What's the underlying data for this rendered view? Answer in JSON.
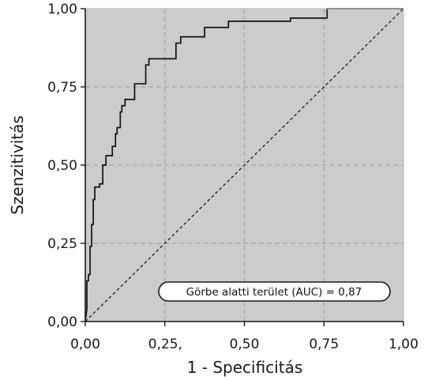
{
  "chart_data": {
    "type": "area",
    "xlabel": "1 - Specificitás",
    "ylabel": "Szenzitivitás",
    "xlim": [
      0,
      1
    ],
    "ylim": [
      0,
      1
    ],
    "grid": true,
    "x_ticks": [
      0,
      0.25,
      0.5,
      0.75,
      1
    ],
    "x_tick_labels": [
      "0,00",
      "0,25,",
      "0,50",
      "0,75",
      "1,00"
    ],
    "y_ticks": [
      0,
      0.25,
      0.5,
      0.75,
      1
    ],
    "y_tick_labels": [
      "0,00",
      "0,25",
      "0,50",
      "0,75",
      "1,00"
    ],
    "annotation": "Görbe alatti terület (AUC) = 0,87",
    "colors": {
      "fill": "#cccccc",
      "curve": "#111111",
      "grid": "#a9a9a9"
    },
    "series": [
      {
        "style": "step-line",
        "points": [
          [
            0,
            0
          ],
          [
            0.005,
            0.04
          ],
          [
            0.005,
            0.13
          ],
          [
            0.01,
            0.13
          ],
          [
            0.01,
            0.15
          ],
          [
            0.015,
            0.15
          ],
          [
            0.015,
            0.24
          ],
          [
            0.02,
            0.24
          ],
          [
            0.02,
            0.31
          ],
          [
            0.025,
            0.31
          ],
          [
            0.025,
            0.39
          ],
          [
            0.03,
            0.39
          ],
          [
            0.03,
            0.43
          ],
          [
            0.045,
            0.43
          ],
          [
            0.045,
            0.44
          ],
          [
            0.055,
            0.44
          ],
          [
            0.055,
            0.5
          ],
          [
            0.065,
            0.5
          ],
          [
            0.065,
            0.53
          ],
          [
            0.085,
            0.53
          ],
          [
            0.085,
            0.56
          ],
          [
            0.095,
            0.56
          ],
          [
            0.095,
            0.6
          ],
          [
            0.1,
            0.6
          ],
          [
            0.1,
            0.62
          ],
          [
            0.11,
            0.62
          ],
          [
            0.11,
            0.67
          ],
          [
            0.115,
            0.67
          ],
          [
            0.115,
            0.69
          ],
          [
            0.125,
            0.69
          ],
          [
            0.125,
            0.71
          ],
          [
            0.155,
            0.71
          ],
          [
            0.155,
            0.76
          ],
          [
            0.19,
            0.76
          ],
          [
            0.19,
            0.82
          ],
          [
            0.2,
            0.82
          ],
          [
            0.2,
            0.84
          ],
          [
            0.285,
            0.84
          ],
          [
            0.285,
            0.89
          ],
          [
            0.3,
            0.89
          ],
          [
            0.3,
            0.91
          ],
          [
            0.375,
            0.91
          ],
          [
            0.375,
            0.94
          ],
          [
            0.45,
            0.94
          ],
          [
            0.45,
            0.96
          ],
          [
            0.645,
            0.96
          ],
          [
            0.645,
            0.97
          ],
          [
            0.76,
            0.97
          ],
          [
            0.76,
            1.0
          ],
          [
            1.0,
            1.0
          ]
        ]
      },
      {
        "style": "dashed-line",
        "points": [
          [
            0,
            0
          ],
          [
            1,
            1
          ]
        ]
      }
    ]
  }
}
